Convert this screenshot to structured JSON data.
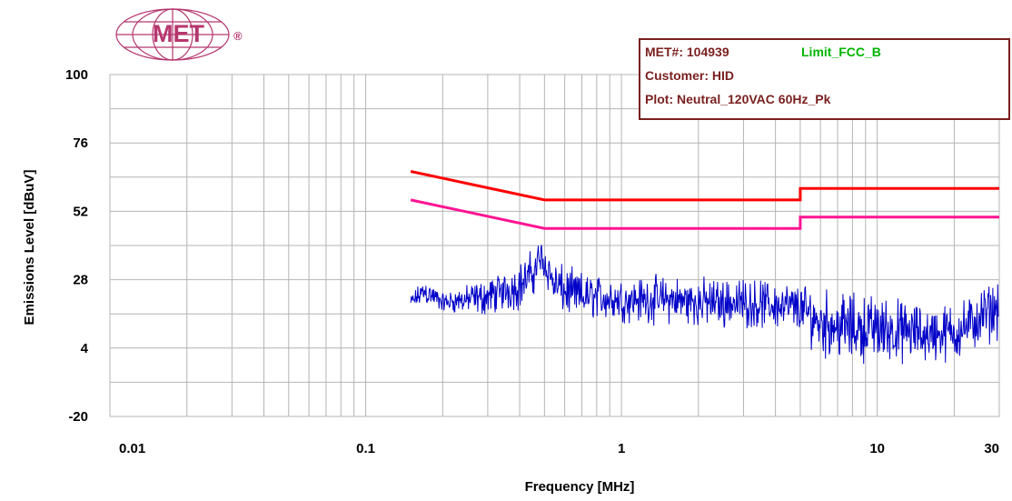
{
  "colors": {
    "grid": "#b4b4b4",
    "frame": "#7a1f1f",
    "limit_qp": "#ff0000",
    "limit_avg": "#ff1493",
    "emissions": "#0000c8",
    "legend_accent": "#00b400",
    "logo": "#b5376e"
  },
  "logo": {
    "text": "MET",
    "mark": "®"
  },
  "info": {
    "met_number": "MET#: 104939",
    "limit_name": "Limit_FCC_B",
    "customer": "Customer: HID",
    "plot": "Plot: Neutral_120VAC 60Hz_Pk"
  },
  "chart_data": {
    "type": "line",
    "xlabel": "Frequency [MHz]",
    "ylabel": "Emissions Level [dBuV]",
    "x_scale": "log",
    "xlim": [
      0.01,
      30
    ],
    "ylim": [
      -20,
      100
    ],
    "x_ticks": [
      {
        "value": 0.01,
        "label": "0.01"
      },
      {
        "value": 0.1,
        "label": "0.1"
      },
      {
        "value": 1,
        "label": "1"
      },
      {
        "value": 10,
        "label": "10"
      },
      {
        "value": 30,
        "label": "30"
      }
    ],
    "y_ticks": [
      {
        "value": -20,
        "label": "-20"
      },
      {
        "value": 4,
        "label": "4"
      },
      {
        "value": 28,
        "label": "28"
      },
      {
        "value": 52,
        "label": "52"
      },
      {
        "value": 76,
        "label": "76"
      },
      {
        "value": 100,
        "label": "100"
      }
    ],
    "grid": true,
    "series": [
      {
        "color": "#ff0000",
        "x": [
          0.15,
          0.5,
          0.5,
          5,
          5,
          30
        ],
        "y": [
          66,
          56,
          56,
          56,
          60,
          60
        ]
      },
      {
        "color": "#ff1493",
        "x": [
          0.15,
          0.5,
          0.5,
          5,
          5,
          30
        ],
        "y": [
          56,
          46,
          46,
          46,
          50,
          50
        ]
      },
      {
        "color": "#0000c8",
        "style": "dense-noise",
        "x": [
          0.15,
          0.17,
          0.2,
          0.25,
          0.3,
          0.35,
          0.4,
          0.45,
          0.48,
          0.5,
          0.55,
          0.6,
          0.7,
          0.8,
          1,
          1.5,
          2,
          3,
          4,
          5,
          6,
          7,
          8,
          10,
          12,
          15,
          18,
          20,
          22,
          25,
          28,
          30
        ],
        "y": [
          20,
          24,
          20,
          21,
          22,
          24,
          26,
          30,
          36,
          34,
          26,
          24,
          22,
          22,
          21,
          21,
          20,
          20,
          19,
          18,
          13,
          12,
          11,
          11,
          10,
          9,
          9,
          10,
          11,
          14,
          17,
          18
        ],
        "spread": [
          3,
          6,
          4,
          6,
          8,
          8,
          10,
          10,
          8,
          8,
          10,
          10,
          10,
          9,
          9,
          10,
          10,
          10,
          10,
          10,
          14,
          14,
          14,
          14,
          13,
          12,
          12,
          12,
          12,
          12,
          12,
          12
        ]
      }
    ]
  }
}
